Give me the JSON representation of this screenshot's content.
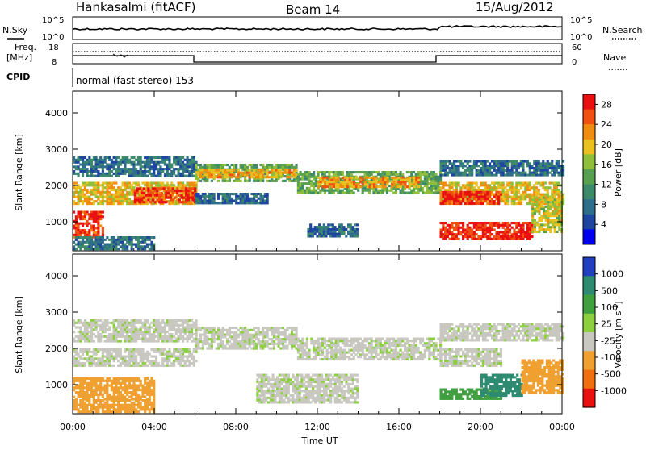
{
  "header": {
    "station": "Hankasalmi (fitACF)",
    "beam": "Beam 14",
    "date": "15/Aug/2012"
  },
  "noise_panel": {
    "left_label": "N.Sky",
    "left_ticks": [
      "10^5",
      "10^0"
    ],
    "right_label": "N.Search",
    "right_ticks": [
      "10^5",
      "10^0"
    ],
    "color": "#000000"
  },
  "freq_panel": {
    "left_label_1": "Freq.",
    "left_label_2": "[MHz]",
    "left_ticks": [
      "18",
      "8"
    ],
    "right_label": "Nave",
    "right_ticks": [
      "60",
      "0"
    ]
  },
  "cpid": {
    "label": "CPID",
    "text": "normal (fast stereo) 153"
  },
  "chart_data": [
    {
      "type": "heatmap",
      "title": "",
      "xlabel": "",
      "ylabel": "Slant Range [km]",
      "xlim": [
        "00:00",
        "24:00"
      ],
      "ylim": [
        200,
        4600
      ],
      "yticks": [
        "1000",
        "2000",
        "3000",
        "4000"
      ],
      "colorbar_label": "Power [dB]",
      "colorbar_ticks": [
        "28",
        "24",
        "20",
        "16",
        "12",
        "8",
        "4"
      ],
      "colorbar_range": [
        0,
        30
      ],
      "colors": [
        "#0000ee",
        "#1e46a0",
        "#2e6e8a",
        "#3c8a6a",
        "#58a050",
        "#8fbf3a",
        "#e8c020",
        "#f08c10",
        "#f05010",
        "#e81010"
      ],
      "bands": [
        {
          "start": 0.0,
          "end": 6.0,
          "range_low": 2250,
          "range_high": 2800,
          "value": 8
        },
        {
          "start": 0.0,
          "end": 6.0,
          "range_low": 1500,
          "range_high": 2100,
          "value": 20
        },
        {
          "start": 3.0,
          "end": 6.0,
          "range_low": 1550,
          "range_high": 1950,
          "value": 26
        },
        {
          "start": 0.0,
          "end": 1.5,
          "range_low": 600,
          "range_high": 1300,
          "value": 27
        },
        {
          "start": 0.0,
          "end": 4.0,
          "range_low": 250,
          "range_high": 600,
          "value": 8
        },
        {
          "start": 6.0,
          "end": 11.0,
          "range_low": 2100,
          "range_high": 2600,
          "value": 14
        },
        {
          "start": 6.0,
          "end": 11.0,
          "range_low": 2250,
          "range_high": 2450,
          "value": 21
        },
        {
          "start": 6.0,
          "end": 9.5,
          "range_low": 1500,
          "range_high": 1800,
          "value": 7
        },
        {
          "start": 11.0,
          "end": 18.0,
          "range_low": 1800,
          "range_high": 2400,
          "value": 14
        },
        {
          "start": 12.0,
          "end": 17.0,
          "range_low": 1950,
          "range_high": 2250,
          "value": 22
        },
        {
          "start": 11.5,
          "end": 14.0,
          "range_low": 600,
          "range_high": 950,
          "value": 7
        },
        {
          "start": 18.0,
          "end": 24.0,
          "range_low": 2300,
          "range_high": 2700,
          "value": 8
        },
        {
          "start": 18.0,
          "end": 24.0,
          "range_low": 1500,
          "range_high": 2100,
          "value": 19
        },
        {
          "start": 18.0,
          "end": 21.0,
          "range_low": 1500,
          "range_high": 1850,
          "value": 27
        },
        {
          "start": 18.0,
          "end": 22.5,
          "range_low": 550,
          "range_high": 1000,
          "value": 28
        },
        {
          "start": 22.5,
          "end": 24.0,
          "range_low": 700,
          "range_high": 1700,
          "value": 18
        }
      ]
    },
    {
      "type": "heatmap",
      "title": "",
      "xlabel": "Time UT",
      "ylabel": "Slant Range [km]",
      "xlim": [
        "00:00",
        "24:00"
      ],
      "xticks": [
        "00:00",
        "04:00",
        "08:00",
        "12:00",
        "16:00",
        "20:00",
        "00:00"
      ],
      "ylim": [
        200,
        4600
      ],
      "yticks": [
        "1000",
        "2000",
        "3000",
        "4000"
      ],
      "colorbar_label": "Velocity [m s^-1]",
      "colorbar_ticks": [
        "1000",
        "500",
        "100",
        "25",
        "-25",
        "-100",
        "-500",
        "-1000"
      ],
      "colors": [
        "#2040c0",
        "#2e8a70",
        "#40a040",
        "#8cd040",
        "#c8c8c0",
        "#f0a030",
        "#f07010",
        "#e81010"
      ],
      "bands": [
        {
          "start": 0.0,
          "end": 6.0,
          "range_low": 2200,
          "range_high": 2800,
          "value": 0
        },
        {
          "start": 0.0,
          "end": 6.0,
          "range_low": 1500,
          "range_high": 2000,
          "value": 0
        },
        {
          "start": 0.0,
          "end": 4.0,
          "range_low": 600,
          "range_high": 1200,
          "value": -80
        },
        {
          "start": 0.0,
          "end": 4.0,
          "range_low": 250,
          "range_high": 600,
          "value": -60
        },
        {
          "start": 6.0,
          "end": 11.0,
          "range_low": 2000,
          "range_high": 2600,
          "value": 0
        },
        {
          "start": 11.0,
          "end": 18.0,
          "range_low": 1700,
          "range_high": 2300,
          "value": 0
        },
        {
          "start": 9.0,
          "end": 14.0,
          "range_low": 500,
          "range_high": 1300,
          "value": 0
        },
        {
          "start": 18.0,
          "end": 24.0,
          "range_low": 2200,
          "range_high": 2700,
          "value": 0
        },
        {
          "start": 18.0,
          "end": 21.0,
          "range_low": 1500,
          "range_high": 2000,
          "value": 0
        },
        {
          "start": 18.0,
          "end": 21.0,
          "range_low": 600,
          "range_high": 900,
          "value": 50
        },
        {
          "start": 20.0,
          "end": 22.0,
          "range_low": 700,
          "range_high": 1300,
          "value": 300
        },
        {
          "start": 22.0,
          "end": 24.0,
          "range_low": 800,
          "range_high": 1700,
          "value": -60
        }
      ]
    }
  ]
}
